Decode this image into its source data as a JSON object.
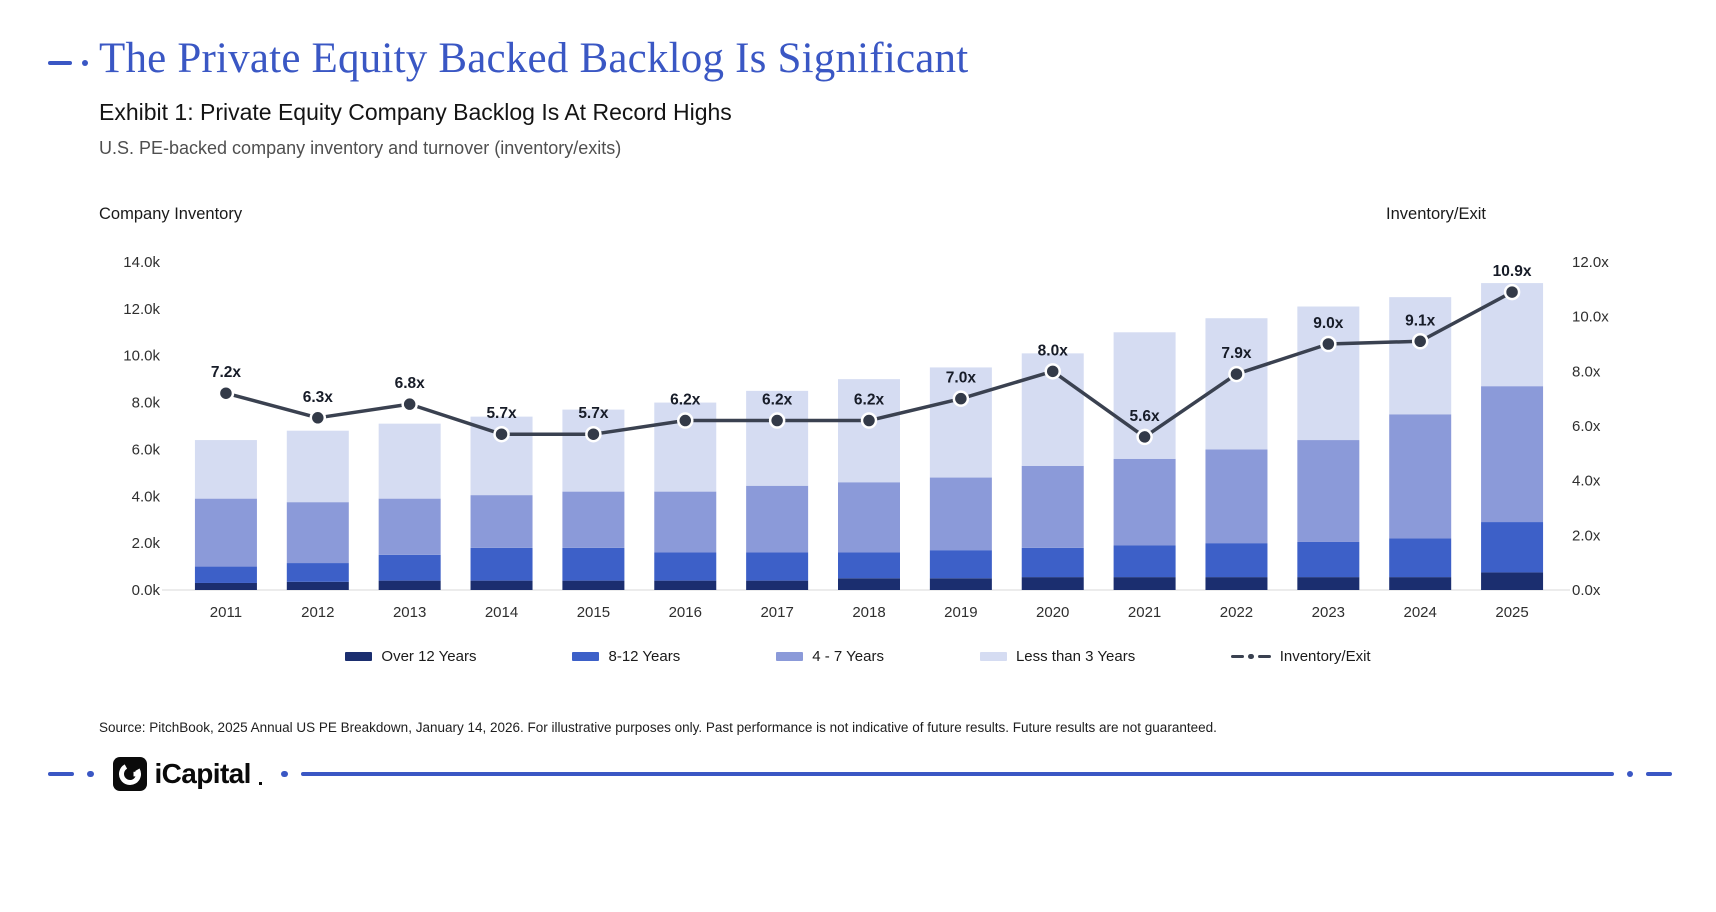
{
  "colors": {
    "accent": "#3A57C4",
    "title": "#3A57C4",
    "bar_over_12_years": "#1B2E6F",
    "bar_8_12_years": "#3D60C8",
    "bar_4_7_years": "#8B9AD9",
    "bar_less_than_3_years": "#D5DCF2",
    "line": "#3A4150",
    "marker": "#333A48"
  },
  "header": {
    "title": "The Private Equity Backed Backlog Is Significant",
    "exhibit": "Exhibit 1: Private Equity Company Backlog Is At Record Highs",
    "description": "U.S. PE-backed company inventory and turnover (inventory/exits)"
  },
  "chart_data": {
    "type": "stacked-bar-with-line",
    "units": "company inventory in thousands (k); line in inventory/exit multiples (x)",
    "grid": false,
    "legend_position": "bottom",
    "categories": [
      "2011",
      "2012",
      "2013",
      "2014",
      "2015",
      "2016",
      "2017",
      "2018",
      "2019",
      "2020",
      "2021",
      "2022",
      "2023",
      "2024",
      "2025"
    ],
    "series": [
      {
        "name": "Over 12 Years",
        "color": "#1B2E6F",
        "values": [
          0.3,
          0.35,
          0.4,
          0.4,
          0.4,
          0.4,
          0.4,
          0.5,
          0.5,
          0.55,
          0.55,
          0.55,
          0.55,
          0.55,
          0.75
        ]
      },
      {
        "name": "8-12 Years",
        "color": "#3D60C8",
        "values": [
          0.7,
          0.8,
          1.1,
          1.4,
          1.4,
          1.2,
          1.2,
          1.1,
          1.2,
          1.25,
          1.35,
          1.45,
          1.5,
          1.65,
          2.15
        ]
      },
      {
        "name": "4 - 7 Years",
        "color": "#8B9AD9",
        "values": [
          2.9,
          2.6,
          2.4,
          2.25,
          2.4,
          2.6,
          2.85,
          3.0,
          3.1,
          3.5,
          3.7,
          4.0,
          4.35,
          5.3,
          5.8
        ]
      },
      {
        "name": "Less than 3 Years",
        "color": "#D5DCF2",
        "values": [
          2.5,
          3.05,
          3.2,
          3.35,
          3.5,
          3.8,
          4.05,
          4.4,
          4.7,
          4.8,
          5.4,
          5.6,
          5.7,
          5.0,
          4.4
        ]
      }
    ],
    "totals": [
      6.4,
      6.8,
      7.1,
      7.4,
      7.7,
      8.0,
      8.5,
      9.0,
      9.5,
      10.1,
      11.0,
      11.6,
      12.1,
      12.5,
      13.1
    ],
    "line": {
      "name": "Inventory/Exit",
      "color": "#3A4150",
      "values": [
        7.2,
        6.3,
        6.8,
        5.7,
        5.7,
        6.2,
        6.2,
        6.2,
        7.0,
        8.0,
        5.6,
        7.9,
        9.0,
        9.1,
        10.9
      ],
      "labels": [
        "7.2x",
        "6.3x",
        "6.8x",
        "5.7x",
        "5.7x",
        "6.2x",
        "6.2x",
        "6.2x",
        "7.0x",
        "8.0x",
        "5.6x",
        "7.9x",
        "9.0x",
        "9.1x",
        "10.9x"
      ]
    },
    "left_axis": {
      "title": "Company Inventory",
      "max": 14,
      "ticks": [
        "0.0k",
        "2.0k",
        "4.0k",
        "6.0k",
        "8.0k",
        "10.0k",
        "12.0k",
        "14.0k"
      ]
    },
    "right_axis": {
      "title": "Inventory/Exit",
      "max": 12,
      "ticks": [
        "0.0x",
        "2.0x",
        "4.0x",
        "6.0x",
        "8.0x",
        "10.0x",
        "12.0x"
      ]
    }
  },
  "footer": {
    "source": "Source: PitchBook, 2025 Annual US PE Breakdown, January 14, 2026. For illustrative purposes only. Past performance is not indicative of future results. Future results are not guaranteed.",
    "brand": "iCapital",
    "logo_icon": "icapital-logo-icon"
  }
}
